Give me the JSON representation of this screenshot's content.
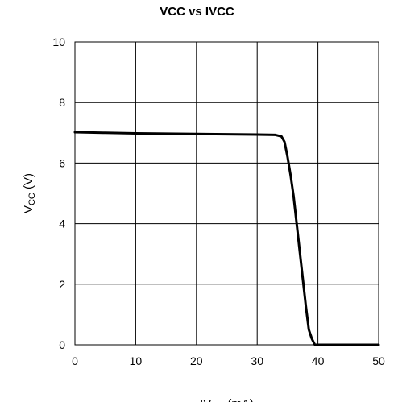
{
  "chart_data": {
    "type": "line",
    "title": "VCC vs IVCC",
    "xlabel": {
      "main": "IV",
      "sub": "CC",
      "unit": "(mA)"
    },
    "ylabel": {
      "main": "V",
      "sub": "CC",
      "unit": "(V)"
    },
    "xlim": [
      0,
      50
    ],
    "ylim": [
      0,
      10
    ],
    "x_ticks": [
      0,
      10,
      20,
      30,
      40,
      50
    ],
    "y_ticks": [
      0,
      2,
      4,
      6,
      8,
      10
    ],
    "grid": true,
    "series": [
      {
        "color": "#000000",
        "points": [
          [
            0,
            7.02
          ],
          [
            5,
            7.0
          ],
          [
            10,
            6.98
          ],
          [
            15,
            6.97
          ],
          [
            20,
            6.96
          ],
          [
            25,
            6.95
          ],
          [
            30,
            6.94
          ],
          [
            33,
            6.93
          ],
          [
            34,
            6.88
          ],
          [
            34.5,
            6.7
          ],
          [
            35,
            6.2
          ],
          [
            35.5,
            5.6
          ],
          [
            36,
            4.9
          ],
          [
            36.5,
            4.0
          ],
          [
            37,
            3.1
          ],
          [
            37.5,
            2.2
          ],
          [
            38,
            1.3
          ],
          [
            38.5,
            0.5
          ],
          [
            39,
            0.2
          ],
          [
            39.5,
            0.0
          ],
          [
            40,
            0.0
          ],
          [
            45,
            0.0
          ],
          [
            50,
            0.0
          ]
        ]
      }
    ]
  }
}
